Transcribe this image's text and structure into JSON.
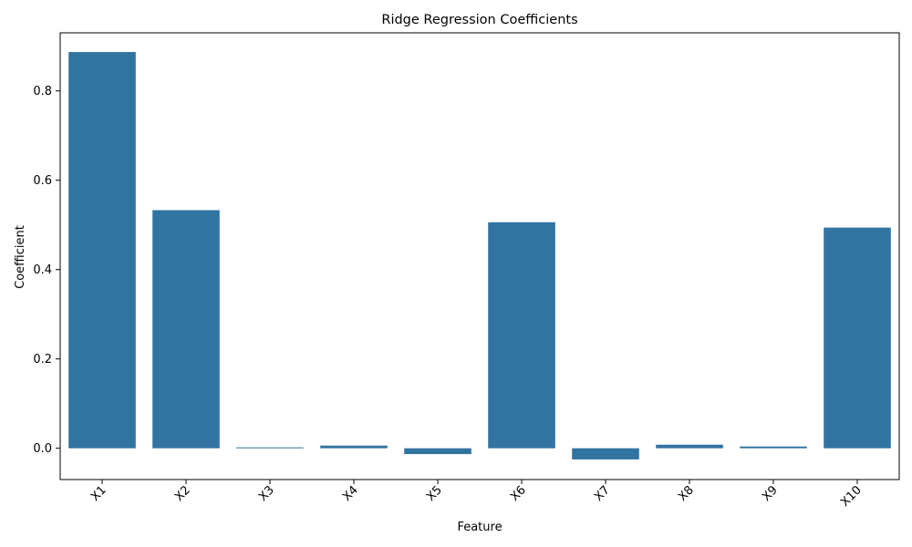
{
  "chart_data": {
    "type": "bar",
    "title": "Ridge Regression Coefficients",
    "xlabel": "Feature",
    "ylabel": "Coefficient",
    "categories": [
      "X1",
      "X2",
      "X3",
      "X4",
      "X5",
      "X6",
      "X7",
      "X8",
      "X9",
      "X10"
    ],
    "values": [
      0.887,
      0.533,
      0.002,
      0.006,
      -0.013,
      0.506,
      -0.025,
      0.008,
      0.004,
      0.494
    ],
    "ylim": [
      -0.07,
      0.93
    ],
    "yticks": [
      0.0,
      0.2,
      0.4,
      0.6,
      0.8
    ],
    "ytick_labels": [
      "0.0",
      "0.2",
      "0.4",
      "0.6",
      "0.8"
    ],
    "bar_color": "#3274a1",
    "grid": false,
    "xtick_rotation_deg": 45
  }
}
